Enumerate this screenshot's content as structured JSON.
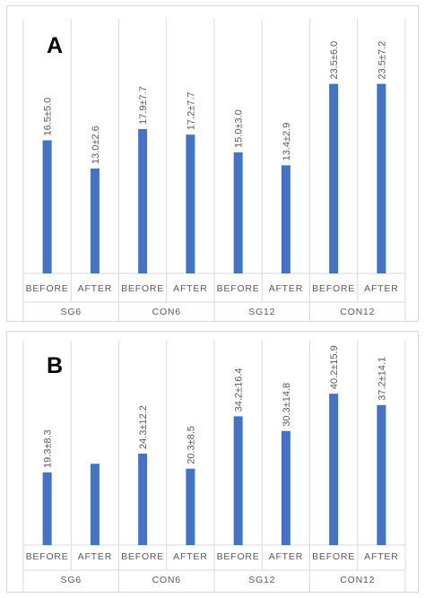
{
  "colors": {
    "bar": "#4472C4",
    "grid": "#d9d9d9",
    "axis_text": "#595959",
    "label_text": "#595959"
  },
  "chart_data": [
    {
      "type": "bar",
      "panel_letter": "A",
      "grid": "vertical",
      "ylim": [
        0,
        30
      ],
      "groups": [
        "SG6",
        "CON6",
        "SG12",
        "CON12"
      ],
      "subcategories": [
        "BEFORE",
        "AFTER"
      ],
      "values": [
        16.5,
        13.0,
        17.9,
        17.2,
        15.0,
        13.4,
        23.5,
        23.5
      ],
      "labels": [
        "16.5±5.0",
        "13.0±2.6",
        "17.9±7.7",
        "17.2±7.7",
        "15.0±3.0",
        "13.4±2.9",
        "23.5±6.0",
        "23.5±7.2"
      ]
    },
    {
      "type": "bar",
      "panel_letter": "B",
      "grid": "vertical",
      "ylim": [
        0,
        50
      ],
      "groups": [
        "SG6",
        "CON6",
        "SG12",
        "CON12"
      ],
      "subcategories": [
        "BEFORE",
        "AFTER"
      ],
      "values": [
        19.3,
        21.6,
        24.3,
        20.3,
        34.2,
        30.3,
        40.2,
        37.2
      ],
      "labels": [
        "19.3±8.3",
        "",
        "24.3±12.2",
        "20.3±8.5",
        "34.2±16.4",
        "30.3±14.8",
        "40.2±15.9",
        "37.2±14.1"
      ]
    }
  ]
}
